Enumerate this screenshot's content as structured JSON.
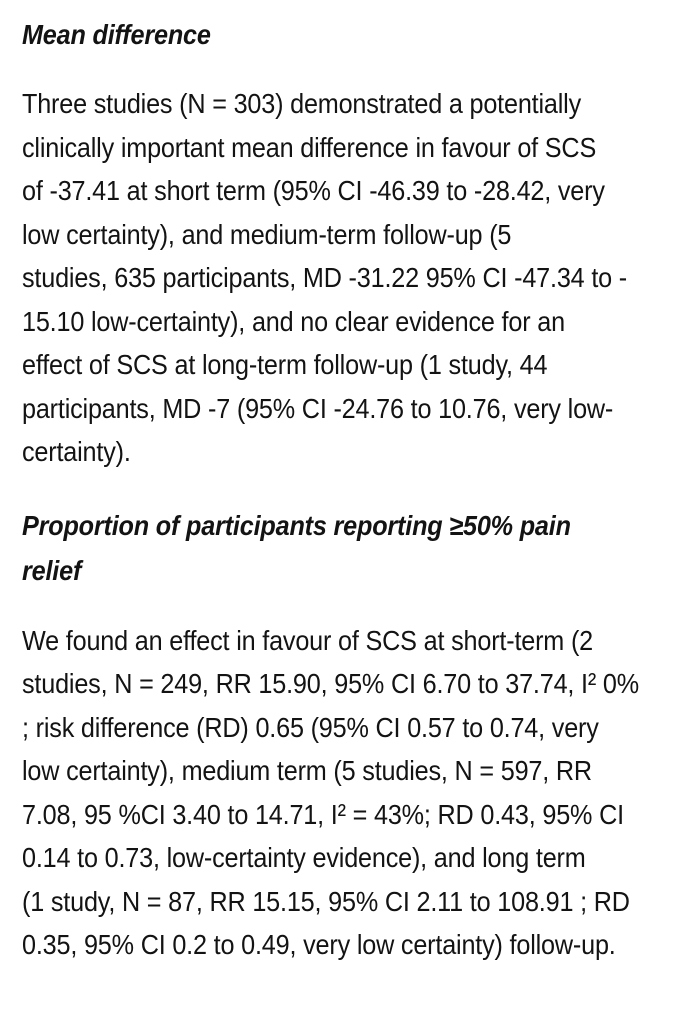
{
  "page": {
    "background_color": "#ffffff",
    "text_color": "#131313"
  },
  "document": {
    "sections": [
      {
        "type": "heading",
        "text": "Mean difference"
      },
      {
        "type": "paragraph",
        "text": "Three studies (N = 303) demonstrated a potentially\nclinically important mean difference in favour of SCS\nof -37.41 at short term (95% CI -46.39 to -28.42, very\nlow certainty), and medium-term follow-up (5\nstudies, 635 participants, MD -31.22 95% CI -47.34 to -\n15.10 low-certainty), and no clear evidence for an\neffect of SCS at long-term follow-up (1 study, 44\nparticipants, MD -7 (95% CI -24.76 to 10.76, very low-\ncertainty)."
      },
      {
        "type": "heading",
        "text": "Proportion of participants reporting ≥50% pain\nrelief"
      },
      {
        "type": "paragraph",
        "text": "We found an effect in favour of SCS at short-term (2\nstudies, N = 249, RR 15.90, 95% CI 6.70 to 37.74, I² 0%\n; risk difference (RD) 0.65 (95% CI 0.57 to 0.74, very\nlow certainty), medium term (5 studies, N = 597, RR\n7.08, 95 %CI 3.40 to 14.71, I² = 43%; RD 0.43, 95% CI\n0.14 to 0.73, low-certainty evidence), and long term\n(1 study, N = 87, RR 15.15, 95% CI 2.11 to 108.91 ; RD\n0.35, 95% CI 0.2 to 0.49, very low certainty) follow-up."
      }
    ]
  }
}
